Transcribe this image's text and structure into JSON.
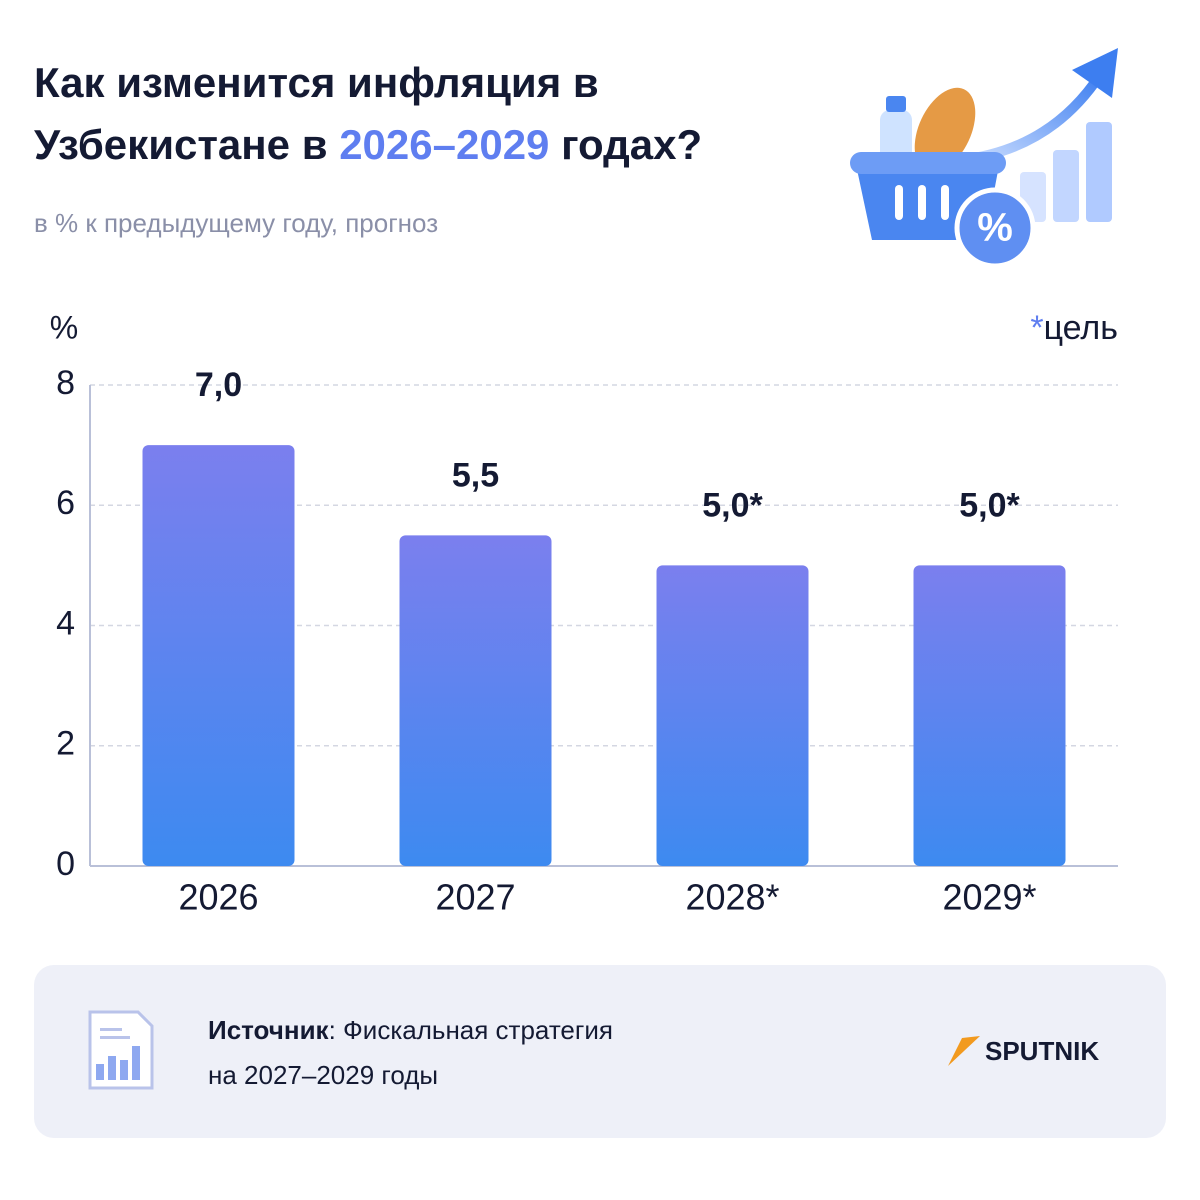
{
  "chart_data": {
    "type": "bar",
    "title_parts": [
      {
        "text": "Как изменится инфляция в Узбекистане в "
      },
      {
        "text": "2026–2029",
        "highlight": true
      },
      {
        "text": " годах?"
      }
    ],
    "subtitle": "в % к предыдущему году, прогноз",
    "y_unit": "%",
    "note_marker": "*",
    "note": "цель",
    "categories": [
      "2026",
      "2027",
      "2028*",
      "2029*"
    ],
    "values": [
      7.0,
      5.5,
      5.0,
      5.0
    ],
    "value_labels": [
      "7,0",
      "5,5",
      "5,0*",
      "5,0*"
    ],
    "color": [
      "#7b7fee",
      "#3d8af0"
    ],
    "ylim": [
      0,
      8
    ],
    "yticks": [
      0,
      2,
      4,
      6,
      8
    ],
    "grid": true
  },
  "footer": {
    "source_label": "Источник",
    "source_text": ": Фискальная стратегия",
    "source_text_2": "на 2027–2029 годы",
    "brand": "SPUTNIK"
  }
}
